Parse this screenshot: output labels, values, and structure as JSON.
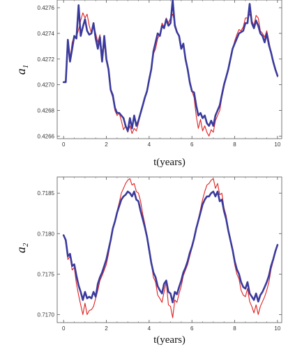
{
  "chart_data": [
    {
      "type": "line",
      "ylabel_main": "a",
      "ylabel_sub": "1",
      "xlabel": "t(years)",
      "xlim": [
        -0.3,
        10.2
      ],
      "ylim": [
        0.42658,
        0.42766
      ],
      "x_ticks": [
        0,
        2,
        4,
        6,
        8,
        10
      ],
      "x_tick_labels": [
        "0",
        "2",
        "4",
        "6",
        "8",
        "10"
      ],
      "y_ticks": [
        0.4266,
        0.4268,
        0.427,
        0.4272,
        0.4274,
        0.4276
      ],
      "y_tick_labels": [
        "0.4266",
        "0.4268",
        "0.4270",
        "0.4272",
        "0.4274",
        "0.4276"
      ],
      "series": [
        {
          "color": "#e02020",
          "x": [
            0,
            0.1,
            0.2,
            0.3,
            0.4,
            0.5,
            0.6,
            0.7,
            0.8,
            0.9,
            1.0,
            1.1,
            1.2,
            1.3,
            1.4,
            1.5,
            1.6,
            1.7,
            1.8,
            1.9,
            2.0,
            2.1,
            2.2,
            2.3,
            2.4,
            2.5,
            2.6,
            2.7,
            2.8,
            2.9,
            3.0,
            3.1,
            3.2,
            3.3,
            3.4,
            3.5,
            3.6,
            3.7,
            3.8,
            3.9,
            4.0,
            4.1,
            4.2,
            4.3,
            4.4,
            4.5,
            4.6,
            4.7,
            4.8,
            4.9,
            5.0,
            5.1,
            5.2,
            5.3,
            5.4,
            5.5,
            5.6,
            5.7,
            5.8,
            5.9,
            6.0,
            6.1,
            6.2,
            6.3,
            6.4,
            6.5,
            6.6,
            6.7,
            6.8,
            6.9,
            7.0,
            7.1,
            7.2,
            7.3,
            7.4,
            7.5,
            7.6,
            7.7,
            7.8,
            7.9,
            8.0,
            8.1,
            8.2,
            8.3,
            8.4,
            8.5,
            8.6,
            8.7,
            8.8,
            8.9,
            9.0,
            9.1,
            9.2,
            9.3,
            9.4,
            9.5,
            9.6,
            9.7,
            9.8,
            9.9,
            10.0
          ],
          "y": [
            0.42702,
            0.42703,
            0.42728,
            0.4272,
            0.42733,
            0.42738,
            0.42737,
            0.42743,
            0.4275,
            0.42756,
            0.42752,
            0.42755,
            0.42746,
            0.4274,
            0.42746,
            0.4274,
            0.42733,
            0.42739,
            0.42724,
            0.42732,
            0.42718,
            0.42713,
            0.42695,
            0.4269,
            0.4268,
            0.42676,
            0.42678,
            0.42672,
            0.42665,
            0.42668,
            0.42663,
            0.42668,
            0.42662,
            0.42666,
            0.42664,
            0.4267,
            0.42678,
            0.42685,
            0.4269,
            0.42696,
            0.42706,
            0.42712,
            0.42724,
            0.42728,
            0.42736,
            0.42739,
            0.42748,
            0.42745,
            0.42752,
            0.42748,
            0.42752,
            0.42755,
            0.42748,
            0.42742,
            0.42738,
            0.42728,
            0.4273,
            0.4272,
            0.42712,
            0.427,
            0.42695,
            0.4269,
            0.42676,
            0.42666,
            0.42673,
            0.42664,
            0.42668,
            0.42663,
            0.4266,
            0.42665,
            0.42663,
            0.42672,
            0.42676,
            0.4268,
            0.4269,
            0.42698,
            0.42706,
            0.42712,
            0.4272,
            0.42728,
            0.42734,
            0.42739,
            0.42743,
            0.42742,
            0.42745,
            0.42752,
            0.42752,
            0.42755,
            0.4275,
            0.42746,
            0.42754,
            0.42752,
            0.42742,
            0.4274,
            0.42737,
            0.42742,
            0.42734,
            0.42725,
            0.42717,
            0.42712,
            0.42706
          ]
        },
        {
          "color": "#3a3a9c",
          "x": [
            0,
            0.1,
            0.2,
            0.3,
            0.4,
            0.5,
            0.6,
            0.7,
            0.8,
            0.9,
            1.0,
            1.1,
            1.2,
            1.3,
            1.4,
            1.5,
            1.6,
            1.7,
            1.8,
            1.9,
            2.0,
            2.1,
            2.2,
            2.3,
            2.4,
            2.5,
            2.6,
            2.7,
            2.8,
            2.9,
            3.0,
            3.1,
            3.2,
            3.3,
            3.4,
            3.5,
            3.6,
            3.7,
            3.8,
            3.9,
            4.0,
            4.1,
            4.2,
            4.3,
            4.4,
            4.5,
            4.6,
            4.7,
            4.8,
            4.9,
            5.0,
            5.1,
            5.2,
            5.3,
            5.4,
            5.5,
            5.6,
            5.7,
            5.8,
            5.9,
            6.0,
            6.1,
            6.2,
            6.3,
            6.4,
            6.5,
            6.6,
            6.7,
            6.8,
            6.9,
            7.0,
            7.1,
            7.2,
            7.3,
            7.4,
            7.5,
            7.6,
            7.7,
            7.8,
            7.9,
            8.0,
            8.1,
            8.2,
            8.3,
            8.4,
            8.5,
            8.6,
            8.7,
            8.8,
            8.9,
            9.0,
            9.1,
            9.2,
            9.3,
            9.4,
            9.5,
            9.6,
            9.7,
            9.8,
            9.9,
            10.0
          ],
          "y": [
            0.42702,
            0.42702,
            0.42735,
            0.42718,
            0.42728,
            0.42738,
            0.42736,
            0.42762,
            0.42738,
            0.42745,
            0.42751,
            0.42742,
            0.42739,
            0.4274,
            0.42748,
            0.42736,
            0.42728,
            0.42737,
            0.42718,
            0.42738,
            0.4272,
            0.42712,
            0.42696,
            0.42692,
            0.42682,
            0.42678,
            0.42678,
            0.42676,
            0.42674,
            0.42668,
            0.42664,
            0.42674,
            0.42666,
            0.42676,
            0.42668,
            0.42672,
            0.42678,
            0.42684,
            0.4269,
            0.42695,
            0.42704,
            0.42712,
            0.42726,
            0.42733,
            0.4274,
            0.42738,
            0.42746,
            0.42744,
            0.42751,
            0.42746,
            0.42748,
            0.42766,
            0.42746,
            0.42741,
            0.42738,
            0.42728,
            0.42732,
            0.4272,
            0.42712,
            0.42702,
            0.42695,
            0.42694,
            0.42684,
            0.42676,
            0.42678,
            0.42674,
            0.42676,
            0.4267,
            0.42668,
            0.42672,
            0.42668,
            0.42676,
            0.4268,
            0.42684,
            0.42692,
            0.427,
            0.42706,
            0.42712,
            0.4272,
            0.42728,
            0.42732,
            0.42736,
            0.4274,
            0.42741,
            0.42742,
            0.42748,
            0.42748,
            0.42763,
            0.42748,
            0.42744,
            0.4275,
            0.42746,
            0.4274,
            0.42738,
            0.42733,
            0.4274,
            0.42731,
            0.42725,
            0.42718,
            0.42712,
            0.42707
          ]
        }
      ]
    },
    {
      "type": "line",
      "ylabel_main": "a",
      "ylabel_sub": "2",
      "xlabel": "t(years)",
      "xlim": [
        -0.3,
        10.2
      ],
      "ylim": [
        0.7169,
        0.7187
      ],
      "x_ticks": [
        0,
        2,
        4,
        6,
        8,
        10
      ],
      "x_tick_labels": [
        "0",
        "2",
        "4",
        "6",
        "8",
        "10"
      ],
      "y_ticks": [
        0.717,
        0.7175,
        0.718,
        0.7185
      ],
      "y_tick_labels": [
        "0.7170",
        "0.7175",
        "0.7180",
        "0.7185"
      ],
      "series": [
        {
          "color": "#e02020",
          "x": [
            0,
            0.1,
            0.2,
            0.3,
            0.4,
            0.5,
            0.6,
            0.7,
            0.8,
            0.9,
            1.0,
            1.1,
            1.2,
            1.3,
            1.4,
            1.5,
            1.6,
            1.7,
            1.8,
            1.9,
            2.0,
            2.1,
            2.2,
            2.3,
            2.4,
            2.5,
            2.6,
            2.7,
            2.8,
            2.9,
            3.0,
            3.1,
            3.2,
            3.3,
            3.4,
            3.5,
            3.6,
            3.7,
            3.8,
            3.9,
            4.0,
            4.1,
            4.2,
            4.3,
            4.4,
            4.5,
            4.6,
            4.7,
            4.8,
            4.9,
            5.0,
            5.1,
            5.2,
            5.3,
            5.4,
            5.5,
            5.6,
            5.7,
            5.8,
            5.9,
            6.0,
            6.1,
            6.2,
            6.3,
            6.4,
            6.5,
            6.6,
            6.7,
            6.8,
            6.9,
            7.0,
            7.1,
            7.2,
            7.3,
            7.4,
            7.5,
            7.6,
            7.7,
            7.8,
            7.9,
            8.0,
            8.1,
            8.2,
            8.3,
            8.4,
            8.5,
            8.6,
            8.7,
            8.8,
            8.9,
            9.0,
            9.1,
            9.2,
            9.3,
            9.4,
            9.5,
            9.6,
            9.7,
            9.8,
            9.9,
            10.0
          ],
          "y": [
            0.71798,
            0.7179,
            0.71768,
            0.71772,
            0.71755,
            0.71758,
            0.71738,
            0.71724,
            0.71712,
            0.717,
            0.71714,
            0.717,
            0.71705,
            0.71706,
            0.7171,
            0.7172,
            0.7173,
            0.71742,
            0.71748,
            0.71755,
            0.71762,
            0.71775,
            0.7179,
            0.71805,
            0.71815,
            0.71828,
            0.71838,
            0.7185,
            0.71856,
            0.71862,
            0.71866,
            0.71868,
            0.7186,
            0.71862,
            0.71852,
            0.7185,
            0.7184,
            0.71824,
            0.71812,
            0.71798,
            0.7178,
            0.71764,
            0.71746,
            0.7174,
            0.71724,
            0.7172,
            0.71715,
            0.71728,
            0.7174,
            0.71712,
            0.7171,
            0.71696,
            0.71718,
            0.71715,
            0.71726,
            0.71735,
            0.71748,
            0.71755,
            0.71762,
            0.71772,
            0.71782,
            0.71792,
            0.71806,
            0.71818,
            0.7183,
            0.71842,
            0.71852,
            0.7186,
            0.71862,
            0.71866,
            0.71868,
            0.71856,
            0.71862,
            0.71848,
            0.7185,
            0.71832,
            0.71822,
            0.71806,
            0.7179,
            0.71778,
            0.71762,
            0.7175,
            0.71744,
            0.7173,
            0.71724,
            0.71722,
            0.71732,
            0.71716,
            0.7171,
            0.71702,
            0.71712,
            0.717,
            0.7171,
            0.71716,
            0.71722,
            0.7173,
            0.7174,
            0.71756,
            0.71766,
            0.71776,
            0.71786
          ]
        },
        {
          "color": "#3a3a9c",
          "x": [
            0,
            0.1,
            0.2,
            0.3,
            0.4,
            0.5,
            0.6,
            0.7,
            0.8,
            0.9,
            1.0,
            1.1,
            1.2,
            1.3,
            1.4,
            1.5,
            1.6,
            1.7,
            1.8,
            1.9,
            2.0,
            2.1,
            2.2,
            2.3,
            2.4,
            2.5,
            2.6,
            2.7,
            2.8,
            2.9,
            3.0,
            3.1,
            3.2,
            3.3,
            3.4,
            3.5,
            3.6,
            3.7,
            3.8,
            3.9,
            4.0,
            4.1,
            4.2,
            4.3,
            4.4,
            4.5,
            4.6,
            4.7,
            4.8,
            4.9,
            5.0,
            5.1,
            5.2,
            5.3,
            5.4,
            5.5,
            5.6,
            5.7,
            5.8,
            5.9,
            6.0,
            6.1,
            6.2,
            6.3,
            6.4,
            6.5,
            6.6,
            6.7,
            6.8,
            6.9,
            7.0,
            7.1,
            7.2,
            7.3,
            7.4,
            7.5,
            7.6,
            7.7,
            7.8,
            7.9,
            8.0,
            8.1,
            8.2,
            8.3,
            8.4,
            8.5,
            8.6,
            8.7,
            8.8,
            8.9,
            9.0,
            9.1,
            9.2,
            9.3,
            9.4,
            9.5,
            9.6,
            9.7,
            9.8,
            9.9,
            10.0
          ],
          "y": [
            0.71798,
            0.71792,
            0.71772,
            0.71775,
            0.7176,
            0.71762,
            0.71748,
            0.71736,
            0.71728,
            0.71718,
            0.71728,
            0.7172,
            0.71722,
            0.7172,
            0.71728,
            0.71722,
            0.71738,
            0.71746,
            0.71752,
            0.7176,
            0.71768,
            0.7178,
            0.71792,
            0.71806,
            0.71815,
            0.71826,
            0.71834,
            0.71842,
            0.71846,
            0.71848,
            0.71852,
            0.7185,
            0.71846,
            0.71852,
            0.71842,
            0.7184,
            0.71828,
            0.71818,
            0.71808,
            0.71796,
            0.7178,
            0.71764,
            0.71752,
            0.71746,
            0.71735,
            0.7173,
            0.71726,
            0.71738,
            0.71742,
            0.71728,
            0.71726,
            0.71715,
            0.71728,
            0.71725,
            0.71734,
            0.71742,
            0.71752,
            0.71758,
            0.71766,
            0.71776,
            0.71784,
            0.71794,
            0.71806,
            0.71816,
            0.71826,
            0.71836,
            0.71842,
            0.71846,
            0.71846,
            0.7185,
            0.71852,
            0.71846,
            0.71852,
            0.7184,
            0.71842,
            0.71828,
            0.71818,
            0.71804,
            0.71792,
            0.7178,
            0.71766,
            0.71756,
            0.7175,
            0.7174,
            0.71734,
            0.71732,
            0.7174,
            0.71726,
            0.71722,
            0.71718,
            0.71726,
            0.71716,
            0.71724,
            0.71728,
            0.71734,
            0.7174,
            0.71748,
            0.7176,
            0.71768,
            0.71778,
            0.71786
          ]
        }
      ]
    }
  ]
}
